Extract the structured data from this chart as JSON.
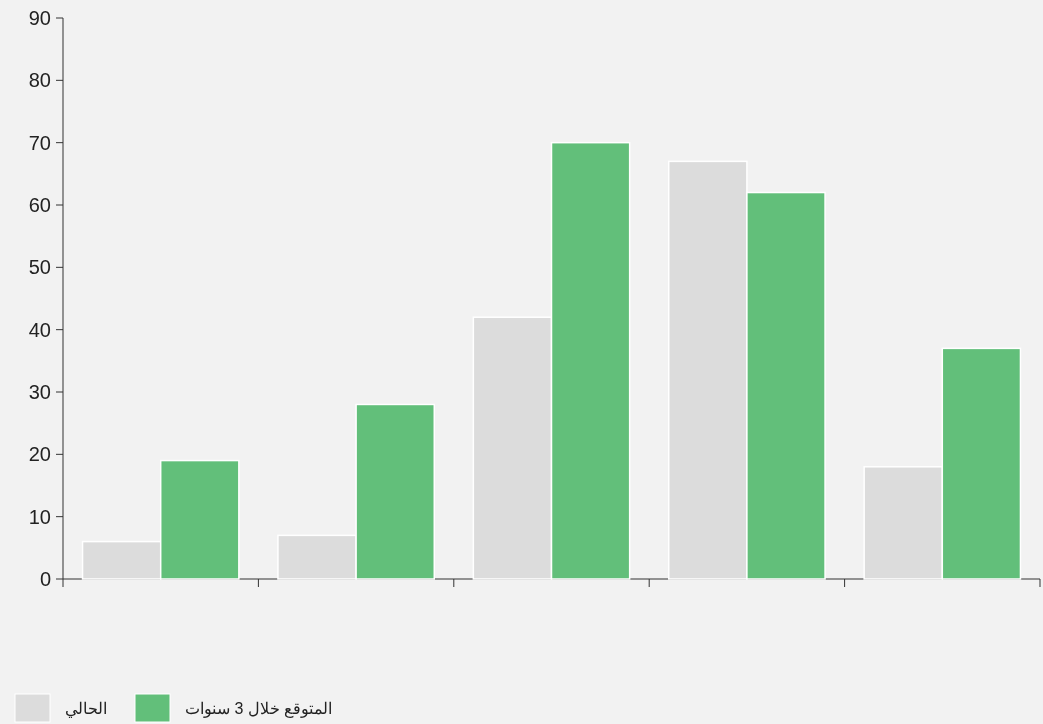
{
  "chart_data": {
    "type": "bar",
    "categories": [
      null,
      null,
      null,
      null,
      null
    ],
    "series": [
      {
        "name": "الحالي",
        "color": "#dcdcdc",
        "values": [
          6,
          7,
          42,
          67,
          18
        ]
      },
      {
        "name": "المتوقع خلال 3 سنوات",
        "color": "#62bf7a",
        "values": [
          19,
          28,
          70,
          62,
          37
        ]
      }
    ],
    "ylim": [
      0,
      90
    ],
    "yticks": [
      0,
      10,
      20,
      30,
      40,
      50,
      60,
      70,
      80,
      90
    ],
    "grid": false,
    "legend": "bottom left"
  }
}
